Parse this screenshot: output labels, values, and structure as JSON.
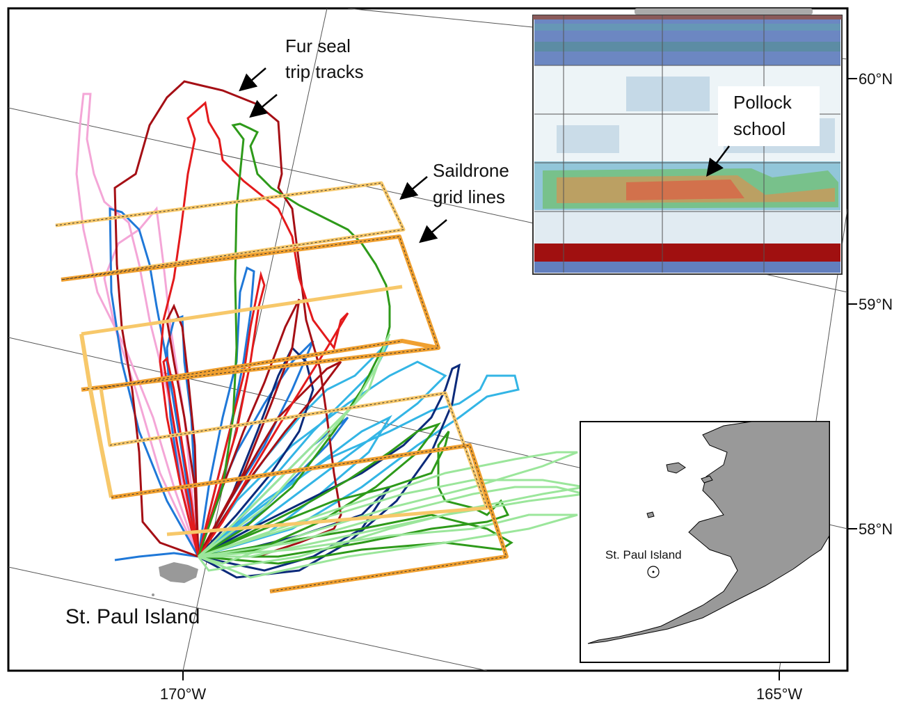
{
  "map": {
    "axis_labels": {
      "lon_170": "170°W",
      "lon_165": "165°W",
      "lat_60": "60°N",
      "lat_59": "59°N",
      "lat_58": "58°N"
    },
    "annotations": {
      "fur_seal_line1": "Fur seal",
      "fur_seal_line2": "trip tracks",
      "saildrone_line1": "Saildrone",
      "saildrone_line2": "grid lines",
      "pollock_line1": "Pollock",
      "pollock_line2": "school",
      "island_label": "St. Paul Island"
    },
    "inset": {
      "island_label": "St. Paul Island"
    }
  },
  "colors": {
    "track_dark_red": "#a50f15",
    "track_red": "#e31a1c",
    "track_blue": "#1f78d8",
    "track_light_blue": "#33b5e5",
    "track_navy": "#0b2a7a",
    "track_green": "#2e9a1a",
    "track_light_green": "#9be69b",
    "track_pink": "#f4a6d7",
    "grid_line_light": "#f7c86a",
    "grid_line_dark": "#f0a030",
    "land": "#999999",
    "echogram_red": "#a01010"
  }
}
